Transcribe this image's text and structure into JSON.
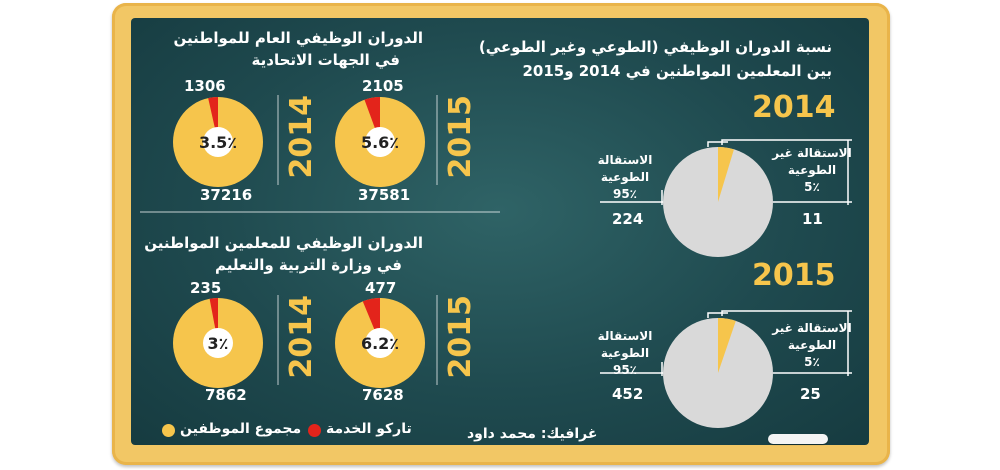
{
  "colors": {
    "board": "#1f4a4f",
    "frame": "#f2c765",
    "accent_yellow": "#f6c54c",
    "red": "#e3241b",
    "pie_grey": "#d9d9d9",
    "white": "#ffffff"
  },
  "right_panel": {
    "title_line1": "نسبة الدوران الوظيفي (الطوعي وغير الطوعي)",
    "title_line2": "بين المعلمين المواطنين في 2014 و2015",
    "involuntary_label_1": "الاستقالة غير",
    "involuntary_label_2": "الطوعية",
    "voluntary_label_1": "الاستقالة",
    "voluntary_label_2": "الطوعية"
  },
  "left_panel": {
    "section1_title_line1": "الدوران الوظيفي العام للمواطنين",
    "section1_title_line2": "في الجهات الاتحادية",
    "section2_title_line1": "الدوران الوظيفي للمعلمين المواطنين",
    "section2_title_line2": "في وزارة التربية والتعليم"
  },
  "legend": {
    "total_label": "مجموع الموظفين",
    "leavers_label": "تاركو الخدمة"
  },
  "credit": "غرافيك: محمد داود",
  "chart_data": [
    {
      "type": "pie",
      "title": "2014",
      "categories": [
        "الاستقالة غير الطوعية",
        "الاستقالة الطوعية"
      ],
      "values": [
        11,
        224
      ],
      "percent_labels": [
        "5٪",
        "95٪"
      ]
    },
    {
      "type": "pie",
      "title": "2015",
      "categories": [
        "الاستقالة غير الطوعية",
        "الاستقالة الطوعية"
      ],
      "values": [
        25,
        452
      ],
      "percent_labels": [
        "5٪",
        "95٪"
      ]
    },
    {
      "type": "pie",
      "title": "2015",
      "categories": [
        "تاركو الخدمة",
        "مجموع الموظفين"
      ],
      "values": [
        2105,
        37581
      ],
      "center_label": "5.6٪"
    },
    {
      "type": "pie",
      "title": "2014",
      "categories": [
        "تاركو الخدمة",
        "مجموع الموظفين"
      ],
      "values": [
        1306,
        37216
      ],
      "center_label": "3.5٪"
    },
    {
      "type": "pie",
      "title": "2015",
      "categories": [
        "تاركو الخدمة",
        "مجموع الموظفين"
      ],
      "values": [
        477,
        7628
      ],
      "center_label": "6.2٪"
    },
    {
      "type": "pie",
      "title": "2014",
      "categories": [
        "تاركو الخدمة",
        "مجموع الموظفين"
      ],
      "values": [
        235,
        7862
      ],
      "center_label": "3٪"
    }
  ]
}
